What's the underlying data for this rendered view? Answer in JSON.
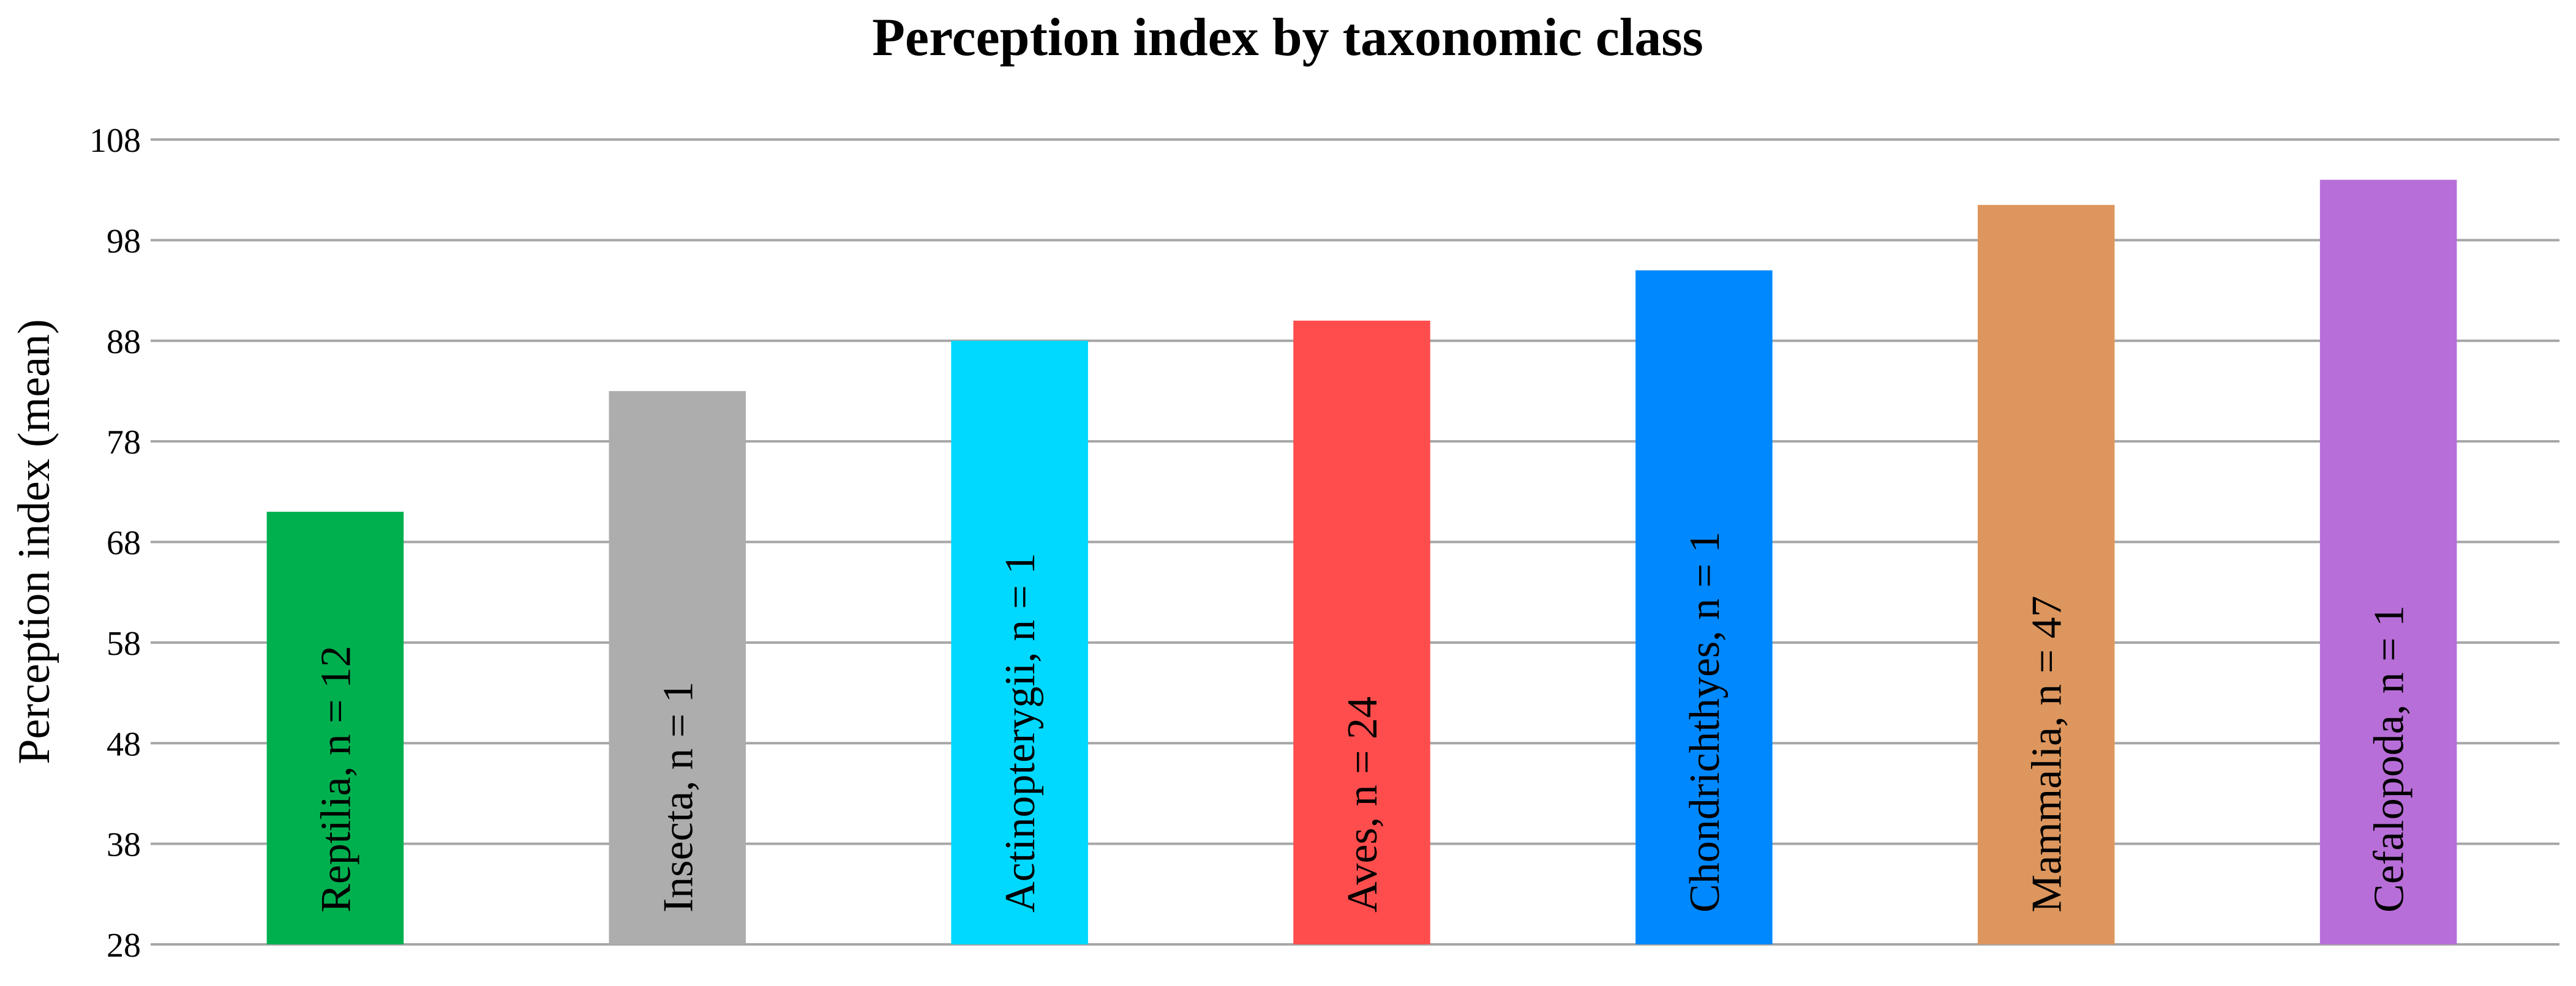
{
  "chart_data": {
    "type": "bar",
    "title": "Perception index by taxonomic class",
    "xlabel": "",
    "ylabel": "Perception index (mean)",
    "ylim": [
      28,
      108
    ],
    "yticks": [
      28,
      38,
      48,
      58,
      68,
      78,
      88,
      98,
      108
    ],
    "grid": true,
    "legend": "none",
    "categories": [
      "Reptilia, n = 12",
      "Insecta, n = 1",
      "Actinopterygii, n = 1",
      "Aves, n = 24",
      "Chondrichthyes, n = 1",
      "Mammalia, n = 47",
      "Cefalopoda, n = 1"
    ],
    "values": [
      71,
      83,
      88,
      90,
      95,
      101.5,
      104
    ],
    "colors": [
      "#00b04f",
      "#adadad",
      "#00d9ff",
      "#ff4d4d",
      "#0088ff",
      "#dd965d",
      "#b86ed8"
    ]
  }
}
